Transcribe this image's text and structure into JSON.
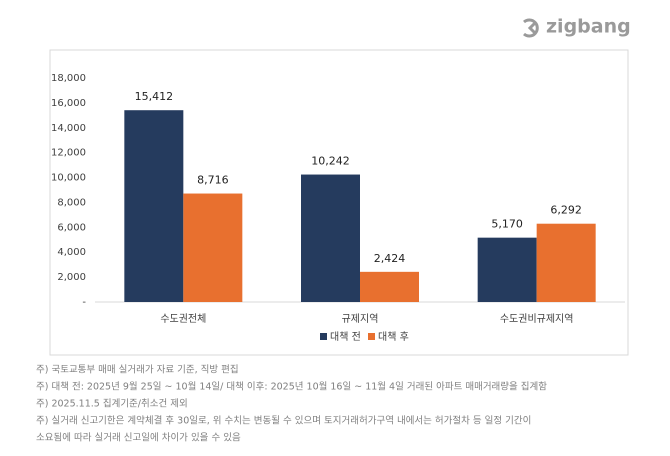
{
  "logo": "zigbang",
  "chart_data": {
    "type": "bar",
    "categories": [
      "수도권전체",
      "규제지역",
      "수도권비규제지역"
    ],
    "series": [
      {
        "name": "대책 전",
        "color": "#253b5e",
        "values": [
          15412,
          10242,
          5170
        ],
        "value_labels": [
          "15,412",
          "10,242",
          "5,170"
        ]
      },
      {
        "name": "대책 후",
        "color": "#e8702f",
        "values": [
          8716,
          2424,
          6292
        ],
        "value_labels": [
          "8,716",
          "2,424",
          "6,292"
        ]
      }
    ],
    "ylim": [
      0,
      18000
    ],
    "yticks": [
      {
        "value": 0,
        "label": "-"
      },
      {
        "value": 2000,
        "label": "2,000"
      },
      {
        "value": 4000,
        "label": "4,000"
      },
      {
        "value": 6000,
        "label": "6,000"
      },
      {
        "value": 8000,
        "label": "8,000"
      },
      {
        "value": 10000,
        "label": "10,000"
      },
      {
        "value": 12000,
        "label": "12,000"
      },
      {
        "value": 14000,
        "label": "14,000"
      },
      {
        "value": 16000,
        "label": "16,000"
      },
      {
        "value": 18000,
        "label": "18,000"
      }
    ],
    "legend": "bottom"
  },
  "notes": [
    "주) 국토교통부 매매 실거래가 자료 기준, 직방 편집",
    "주) 대책 전: 2025년 9월 25일 ~ 10월 14일/ 대책 이후: 2025년 10월 16일 ~ 11월 4일 거래된 아파트 매매거래량을 집계함",
    "주) 2025.11.5 집계기준/취소건 제외",
    "주) 실거래 신고기한은 계약체결 후 30일로, 위 수치는 변동될 수 있으며 토지거래허가구역 내에서는 허가절차 등 일정 기간이",
    "소요됨에 따라 실거래 신고일에 차이가 있을 수 있음"
  ]
}
